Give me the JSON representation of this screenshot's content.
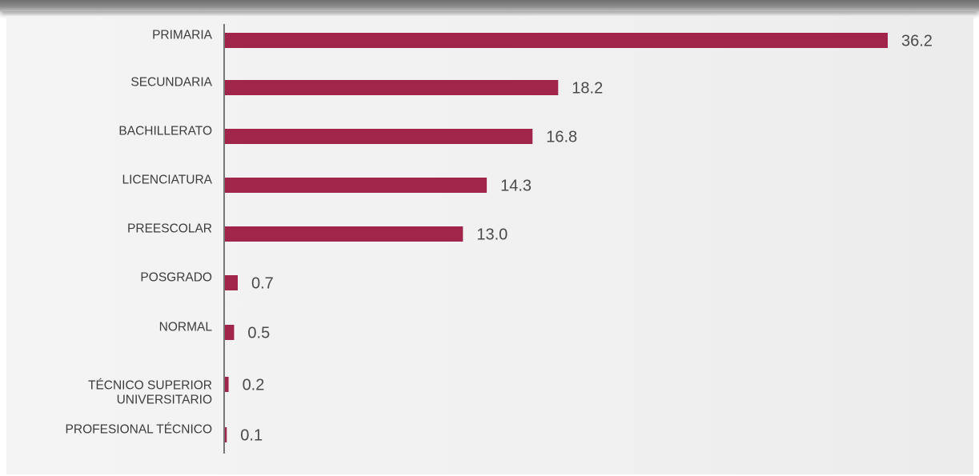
{
  "colors": {
    "bar": "#a1244a",
    "axis": "#777777",
    "text": "#3c3c3c",
    "value_text": "#4a4a4a"
  },
  "chart_data": {
    "type": "bar",
    "orientation": "horizontal",
    "categories": [
      "PRIMARIA",
      "SECUNDARIA",
      "BACHILLERATO",
      "LICENCIATURA",
      "PREESCOLAR",
      "POSGRADO",
      "NORMAL",
      "TÉCNICO SUPERIOR UNIVERSITARIO",
      "PROFESIONAL TÉCNICO"
    ],
    "values": [
      36.2,
      18.2,
      16.8,
      14.3,
      13.0,
      0.7,
      0.5,
      0.2,
      0.1
    ],
    "value_labels": [
      "36.2",
      "18.2",
      "16.8",
      "14.3",
      "13.0",
      "0.7",
      "0.5",
      "0.2",
      "0.1"
    ],
    "title": "",
    "xlabel": "",
    "ylabel": "",
    "xlim": [
      0,
      36.2
    ],
    "grid": false,
    "legend": "none"
  }
}
